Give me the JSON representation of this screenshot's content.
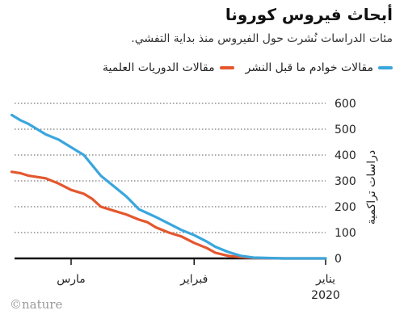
{
  "title": "أبحاث فيروس كورونا",
  "subtitle": "مئات الدراسات نُشرت حول الفيروس منذ بداية التفشي.",
  "brand": "©nature",
  "colors": {
    "journal": "#e4572e",
    "preprint": "#3aa6dd"
  },
  "chart_data": {
    "type": "line",
    "ylabel": "دراسات تراكمية",
    "ylim": [
      0,
      600
    ],
    "y_ticks": [
      "0",
      "100",
      "200",
      "300",
      "400",
      "500",
      "600"
    ],
    "y_tick_values": [
      0,
      100,
      200,
      300,
      400,
      500,
      600
    ],
    "x_axis_direction": "right-to-left",
    "x_ticks": [
      {
        "label": "يناير",
        "sub": "2020",
        "day": 0
      },
      {
        "label": "فبراير",
        "day": 31
      },
      {
        "label": "مارس",
        "day": 60
      }
    ],
    "xlim_days": [
      0,
      74
    ],
    "series": [
      {
        "name": "مقالات الدوريات العلمية",
        "color_key": "journal",
        "days": [
          0,
          10,
          17,
          20,
          23,
          26,
          28,
          31,
          34,
          37,
          40,
          42,
          44,
          47,
          50,
          53,
          55,
          57,
          60,
          63,
          66,
          68,
          70,
          72,
          74
        ],
        "values": [
          0,
          0,
          2,
          5,
          10,
          22,
          40,
          60,
          85,
          100,
          120,
          140,
          150,
          170,
          185,
          200,
          230,
          250,
          265,
          290,
          310,
          315,
          320,
          330,
          335
        ]
      },
      {
        "name": "مقالات خوادم ما قبل النشر",
        "color_key": "preprint",
        "days": [
          0,
          10,
          17,
          20,
          23,
          26,
          28,
          31,
          34,
          37,
          40,
          42,
          44,
          47,
          50,
          53,
          55,
          57,
          60,
          63,
          66,
          68,
          70,
          72,
          74
        ],
        "values": [
          0,
          0,
          3,
          10,
          25,
          45,
          65,
          90,
          110,
          135,
          160,
          175,
          190,
          240,
          280,
          320,
          360,
          400,
          430,
          460,
          480,
          500,
          520,
          535,
          555
        ]
      }
    ]
  }
}
